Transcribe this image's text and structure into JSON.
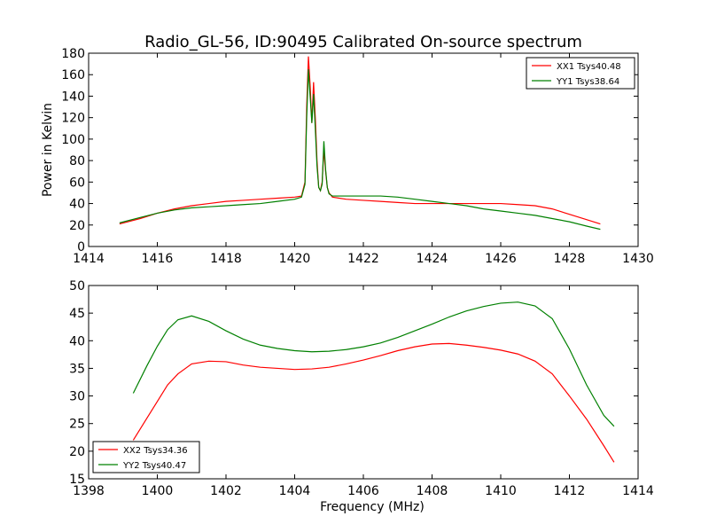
{
  "figure": {
    "title": "Radio_GL-56, ID:90495 Calibrated On-source spectrum"
  },
  "chart_data": [
    {
      "type": "line",
      "title": "Radio_GL-56, ID:90495 Calibrated On-source spectrum",
      "xlabel": "",
      "ylabel": "Power in Kelvin",
      "xlim": [
        1414,
        1430
      ],
      "ylim": [
        0,
        180
      ],
      "xticks": [
        1414,
        1416,
        1418,
        1420,
        1422,
        1424,
        1426,
        1428,
        1430
      ],
      "yticks": [
        0,
        20,
        40,
        60,
        80,
        100,
        120,
        140,
        160,
        180
      ],
      "legend_position": "top-right",
      "grid": false,
      "series": [
        {
          "name": "XX1 Tsys40.48",
          "color": "#ff0000",
          "x": [
            1414.9,
            1415.5,
            1416.0,
            1416.5,
            1417.0,
            1417.5,
            1418.0,
            1418.5,
            1419.0,
            1419.5,
            1420.0,
            1420.2,
            1420.3,
            1420.35,
            1420.4,
            1420.45,
            1420.5,
            1420.55,
            1420.6,
            1420.65,
            1420.7,
            1420.75,
            1420.8,
            1420.85,
            1420.9,
            1420.95,
            1421.0,
            1421.1,
            1421.5,
            1422.0,
            1422.5,
            1423.0,
            1423.5,
            1424.0,
            1424.5,
            1425.0,
            1425.5,
            1426.0,
            1426.5,
            1427.0,
            1427.5,
            1428.0,
            1428.5,
            1428.9
          ],
          "values": [
            21,
            26,
            31,
            35,
            38,
            40,
            42,
            43,
            44,
            45,
            46,
            47,
            60,
            130,
            177,
            150,
            115,
            153,
            120,
            80,
            55,
            52,
            60,
            90,
            70,
            55,
            50,
            46,
            44,
            43,
            42,
            41,
            40,
            40,
            40,
            40,
            40,
            40,
            39,
            38,
            35,
            30,
            25,
            21
          ]
        },
        {
          "name": "YY1 Tsys38.64",
          "color": "#008000",
          "x": [
            1414.9,
            1415.5,
            1416.0,
            1416.5,
            1417.0,
            1417.5,
            1418.0,
            1418.5,
            1419.0,
            1419.5,
            1420.0,
            1420.2,
            1420.3,
            1420.35,
            1420.4,
            1420.45,
            1420.5,
            1420.55,
            1420.6,
            1420.65,
            1420.7,
            1420.75,
            1420.8,
            1420.85,
            1420.9,
            1420.95,
            1421.0,
            1421.1,
            1421.5,
            1422.0,
            1422.5,
            1423.0,
            1423.5,
            1424.0,
            1424.5,
            1425.0,
            1425.5,
            1426.0,
            1426.5,
            1427.0,
            1427.5,
            1428.0,
            1428.5,
            1428.9
          ],
          "values": [
            22,
            27,
            31,
            34,
            36,
            37,
            38,
            39,
            40,
            42,
            44,
            46,
            58,
            120,
            165,
            140,
            115,
            142,
            110,
            75,
            55,
            52,
            58,
            98,
            72,
            55,
            49,
            47,
            47,
            47,
            47,
            46,
            44,
            42,
            40,
            38,
            35,
            33,
            31,
            29,
            26,
            23,
            19,
            16
          ]
        }
      ]
    },
    {
      "type": "line",
      "title": "",
      "xlabel": "Frequency (MHz)",
      "ylabel": "",
      "xlim": [
        1398,
        1414
      ],
      "ylim": [
        15,
        50
      ],
      "xticks": [
        1398,
        1400,
        1402,
        1404,
        1406,
        1408,
        1410,
        1412,
        1414
      ],
      "yticks": [
        15,
        20,
        25,
        30,
        35,
        40,
        45,
        50
      ],
      "legend_position": "bottom-left",
      "grid": false,
      "series": [
        {
          "name": "XX2 Tsys34.36",
          "color": "#ff0000",
          "x": [
            1399.3,
            1399.7,
            1400.0,
            1400.3,
            1400.6,
            1401.0,
            1401.5,
            1402.0,
            1402.5,
            1403.0,
            1403.5,
            1404.0,
            1404.5,
            1405.0,
            1405.5,
            1406.0,
            1406.5,
            1407.0,
            1407.5,
            1408.0,
            1408.5,
            1409.0,
            1409.5,
            1410.0,
            1410.5,
            1411.0,
            1411.5,
            1412.0,
            1412.5,
            1413.0,
            1413.3
          ],
          "values": [
            22,
            26,
            29,
            32,
            34,
            35.8,
            36.3,
            36.2,
            35.6,
            35.2,
            35.0,
            34.8,
            34.9,
            35.2,
            35.8,
            36.5,
            37.3,
            38.2,
            38.9,
            39.4,
            39.5,
            39.2,
            38.8,
            38.3,
            37.6,
            36.3,
            34.0,
            30.0,
            25.8,
            21.0,
            18.0
          ]
        },
        {
          "name": "YY2 Tsys40.47",
          "color": "#008000",
          "x": [
            1399.3,
            1399.7,
            1400.0,
            1400.3,
            1400.6,
            1401.0,
            1401.5,
            1402.0,
            1402.5,
            1403.0,
            1403.5,
            1404.0,
            1404.5,
            1405.0,
            1405.5,
            1406.0,
            1406.5,
            1407.0,
            1407.5,
            1408.0,
            1408.5,
            1409.0,
            1409.5,
            1410.0,
            1410.5,
            1411.0,
            1411.5,
            1412.0,
            1412.5,
            1413.0,
            1413.3
          ],
          "values": [
            30.5,
            35.5,
            39,
            42,
            43.8,
            44.5,
            43.5,
            41.8,
            40.3,
            39.2,
            38.6,
            38.2,
            38.0,
            38.1,
            38.4,
            38.9,
            39.6,
            40.6,
            41.8,
            43.0,
            44.3,
            45.4,
            46.2,
            46.8,
            47.0,
            46.3,
            44.0,
            38.5,
            32.0,
            26.5,
            24.5
          ]
        }
      ]
    }
  ]
}
